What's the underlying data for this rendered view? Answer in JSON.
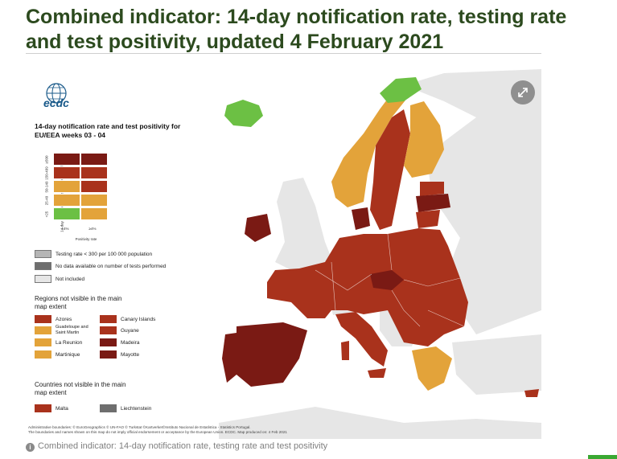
{
  "header": {
    "title": "Combined indicator: 14-day notification rate, testing rate and test positivity, updated 4 February 2021"
  },
  "map": {
    "logo": "ecdc",
    "logo_icon": "globe-icon",
    "expand_icon": "expand-arrows-icon",
    "legend_title": "14-day notification rate and test positivity for EU/EEA weeks 03 - 04",
    "y_axis_label": "14-day notification rate per 100 000 population",
    "y_ticks": [
      "<25",
      "25-49",
      "50-149",
      "150-499",
      "≥500"
    ],
    "x_axis_label": "Positivity rate",
    "x_ticks": [
      "<4%",
      "≥4%"
    ],
    "matrix_colors": [
      [
        "#7a1a14",
        "#7a1a14"
      ],
      [
        "#a9321c",
        "#a9321c"
      ],
      [
        "#e3a33a",
        "#a9321c"
      ],
      [
        "#e3a33a",
        "#e3a33a"
      ],
      [
        "#6cc044",
        "#e3a33a"
      ]
    ],
    "legend_items": [
      {
        "label": "Testing rate < 300 per 100 000 population",
        "color": "#b5b5b5"
      },
      {
        "label": "No data available on number of tests performed",
        "color": "#6e6e6e"
      },
      {
        "label": "Not included",
        "color": "#e6e6e6"
      }
    ],
    "regions_title": "Regions not visible in the main map extent",
    "regions": [
      {
        "label": "Azores",
        "color": "#a9321c"
      },
      {
        "label": "Canary Islands",
        "color": "#a9321c"
      },
      {
        "label": "Guadeloupe and Saint Martin",
        "color": "#e3a33a"
      },
      {
        "label": "Guyane",
        "color": "#a9321c"
      },
      {
        "label": "La Reunion",
        "color": "#e3a33a"
      },
      {
        "label": "Madeira",
        "color": "#7a1a14"
      },
      {
        "label": "Martinique",
        "color": "#e3a33a"
      },
      {
        "label": "Mayotte",
        "color": "#7a1a14"
      }
    ],
    "countries_title": "Countries not visible in the main map extent",
    "countries": [
      {
        "label": "Malta",
        "color": "#a9321c"
      },
      {
        "label": "Liechtenstein",
        "color": "#6e6e6e"
      }
    ],
    "footer_lines": [
      "Administrative boundaries: © EuroGeographics © UN-FAO © Turkstat ©Kartverket©Instituto Nacional de Estatística - Statistics Portugal.",
      "The boundaries and names shown on this map do not imply official endorsement or acceptance by the European Union. ECDC. Map produced on: 4 Feb 2021"
    ]
  },
  "caption": {
    "icon": "info-icon",
    "text": "Combined indicator: 14-day notification rate, testing rate and test positivity"
  },
  "colors": {
    "green": "#6cc044",
    "orange": "#e3a33a",
    "red": "#a9321c",
    "dark_red": "#7a1a14",
    "not_included": "#e6e6e6"
  }
}
